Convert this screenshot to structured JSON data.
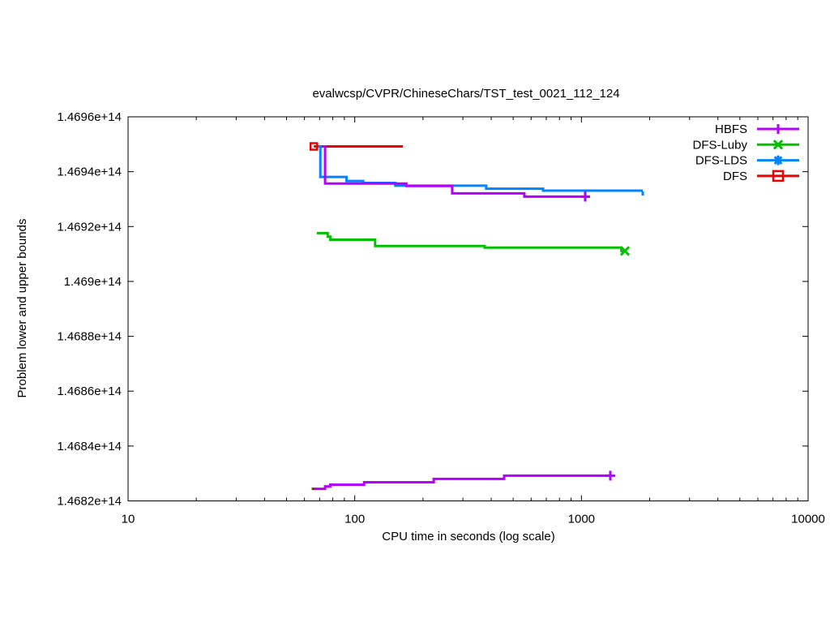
{
  "chart_data": {
    "type": "line",
    "title": "evalwcsp/CVPR/ChineseChars/TST_test_0021_112_124",
    "xlabel": "CPU time in seconds (log scale)",
    "ylabel": "Problem lower and upper bounds",
    "x_scale": "log",
    "grid": false,
    "xlim": [
      10,
      10000
    ],
    "ylim": [
      146820000000000.0,
      146960000000000.0
    ],
    "x_ticks": [
      10,
      100,
      1000,
      10000
    ],
    "x_tick_labels": [
      "10",
      "100",
      "1000",
      "10000"
    ],
    "y_ticks": [
      146820000000000.0,
      146840000000000.0,
      146860000000000.0,
      146880000000000.0,
      146900000000000.0,
      146920000000000.0,
      146940000000000.0,
      146960000000000.0
    ],
    "y_tick_labels": [
      "1.4682e+14",
      "1.4684e+14",
      "1.4686e+14",
      "1.4688e+14",
      "1.469e+14",
      "1.4692e+14",
      "1.4694e+14",
      "1.4696e+14"
    ],
    "legend_position": "top-right",
    "legend": [
      {
        "label": "HBFS",
        "color": "#b300ff",
        "marker": "plus"
      },
      {
        "label": "DFS-Luby",
        "color": "#00c000",
        "marker": "cross"
      },
      {
        "label": "DFS-LDS",
        "color": "#0084ff",
        "marker": "asterisk"
      },
      {
        "label": "DFS",
        "color": "#ee0000",
        "marker": "square"
      }
    ],
    "series": [
      {
        "id": "dfs-luby-lower",
        "name": "DFS-Luby",
        "bound": "lower",
        "color": "#00c000",
        "marker": null,
        "points": [
          [
            64.5,
            146824400000000.0
          ],
          [
            66.5,
            146824400000000.0
          ]
        ]
      },
      {
        "id": "dfs-lower",
        "name": "DFS",
        "bound": "lower",
        "color": "#ee0000",
        "marker": null,
        "points": [
          [
            65,
            146824400000000.0
          ],
          [
            67.5,
            146824400000000.0
          ]
        ]
      },
      {
        "id": "dfs-upper",
        "name": "DFS",
        "bound": "upper",
        "color": "#ee0000",
        "marker": {
          "type": "square",
          "at": "first",
          "size": 4
        },
        "points": [
          [
            66,
            146949200000000.0
          ],
          [
            163,
            146949200000000.0
          ]
        ]
      },
      {
        "id": "dfs-luby-upper",
        "name": "DFS-Luby",
        "bound": "upper",
        "color": "#00c000",
        "marker": {
          "type": "cross",
          "at": "last",
          "size": 6
        },
        "points": [
          [
            68,
            146917600000000.0
          ],
          [
            76,
            146917600000000.0
          ],
          [
            76,
            146916300000000.0
          ],
          [
            78,
            146916300000000.0
          ],
          [
            78,
            146915200000000.0
          ],
          [
            123,
            146915200000000.0
          ],
          [
            123,
            146912900000000.0
          ],
          [
            374,
            146912900000000.0
          ],
          [
            374,
            146912300000000.0
          ],
          [
            1500,
            146912300000000.0
          ],
          [
            1500,
            146911100000000.0
          ],
          [
            1556,
            146911100000000.0
          ]
        ]
      },
      {
        "id": "dfs-lds-upper",
        "name": "DFS-LDS",
        "bound": "upper",
        "color": "#0084ff",
        "marker": {
          "type": "tickdown",
          "at": "last",
          "size": 5
        },
        "points": [
          [
            69,
            146949200000000.0
          ],
          [
            70.5,
            146949200000000.0
          ],
          [
            70.5,
            146938100000000.0
          ],
          [
            92,
            146938100000000.0
          ],
          [
            92,
            146936600000000.0
          ],
          [
            109,
            146936600000000.0
          ],
          [
            109,
            146935900000000.0
          ],
          [
            151,
            146935900000000.0
          ],
          [
            151,
            146934900000000.0
          ],
          [
            380,
            146934900000000.0
          ],
          [
            380,
            146933800000000.0
          ],
          [
            677,
            146933800000000.0
          ],
          [
            677,
            146933100000000.0
          ],
          [
            1864,
            146933100000000.0
          ]
        ]
      },
      {
        "id": "hbfs-upper",
        "name": "HBFS",
        "bound": "upper",
        "color": "#b300ff",
        "marker": {
          "type": "plus",
          "at": "last",
          "size": 6
        },
        "points": [
          [
            72,
            146949200000000.0
          ],
          [
            74,
            146949200000000.0
          ],
          [
            74,
            146935700000000.0
          ],
          [
            169,
            146935700000000.0
          ],
          [
            169,
            146934800000000.0
          ],
          [
            269,
            146934800000000.0
          ],
          [
            269,
            146932100000000.0
          ],
          [
            560,
            146932100000000.0
          ],
          [
            560,
            146930900000000.0
          ],
          [
            1039,
            146930900000000.0
          ]
        ]
      },
      {
        "id": "hbfs-lower",
        "name": "HBFS",
        "bound": "lower",
        "color": "#b300ff",
        "marker": {
          "type": "plus",
          "at": "last",
          "size": 6
        },
        "points": [
          [
            66,
            146824400000000.0
          ],
          [
            74,
            146824400000000.0
          ],
          [
            74,
            146825300000000.0
          ],
          [
            78,
            146825300000000.0
          ],
          [
            78,
            146825900000000.0
          ],
          [
            110,
            146825900000000.0
          ],
          [
            110,
            146826800000000.0
          ],
          [
            223,
            146826800000000.0
          ],
          [
            223,
            146828000000000.0
          ],
          [
            456,
            146828000000000.0
          ],
          [
            456,
            146829200000000.0
          ],
          [
            1341,
            146829200000000.0
          ]
        ]
      }
    ]
  }
}
